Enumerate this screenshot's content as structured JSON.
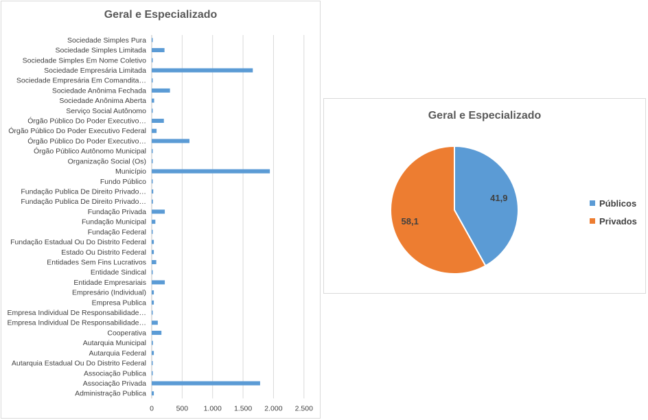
{
  "chart_data": [
    {
      "type": "bar",
      "orientation": "horizontal",
      "title": "Geral e Especializado",
      "xlim": [
        0,
        2500
      ],
      "x_ticks": [
        "0",
        "500",
        "1.000",
        "1.500",
        "2.000",
        "2.500"
      ],
      "x_tick_values": [
        0,
        500,
        1000,
        1500,
        2000,
        2500
      ],
      "grid": true,
      "color": "#5b9bd5",
      "categories": [
        "Sociedade Simples Pura",
        "Sociedade Simples Limitada",
        "Sociedade Simples Em Nome Coletivo",
        "Sociedade Empresária Limitada",
        "Sociedade Empresária Em Comandita…",
        "Sociedade Anônima Fechada",
        "Sociedade Anônima Aberta",
        "Serviço Social Autônomo",
        "Órgão Público Do Poder Executivo…",
        "Órgão Público Do Poder Executivo Federal",
        "Órgão Público Do Poder Executivo…",
        "Órgão Público Autônomo Municipal",
        "Organização Social (Os)",
        "Município",
        "Fundo Público",
        "Fundação Publica De Direito Privado…",
        "Fundação Publica De Direito Privado…",
        "Fundação Privada",
        "Fundação Municipal",
        "Fundação Federal",
        "Fundação Estadual Ou Do Distrito Federal",
        "Estado Ou Distrito Federal",
        "Entidades Sem Fins Lucrativos",
        "Entidade Sindical",
        "Entidade Empresariais",
        "Empresário (Individual)",
        "Empresa Publica",
        "Empresa Individual De Responsabilidade…",
        "Empresa Individual De Responsabilidade…",
        "Cooperativa",
        "Autarquia Municipal",
        "Autarquia Federal",
        "Autarquia Estadual Ou Do Distrito Federal",
        "Associação Publica",
        "Associação Privada",
        "Administração Publica"
      ],
      "values": [
        5,
        210,
        5,
        1660,
        5,
        300,
        40,
        5,
        200,
        80,
        620,
        5,
        5,
        1940,
        5,
        25,
        20,
        215,
        60,
        5,
        35,
        35,
        75,
        5,
        215,
        35,
        35,
        5,
        100,
        160,
        20,
        35,
        5,
        5,
        1780,
        35
      ]
    },
    {
      "type": "pie",
      "title": "Geral e Especializado",
      "labels": [
        "Públicos",
        "Privados"
      ],
      "values": [
        41.9,
        58.1
      ],
      "value_labels": [
        "41,9",
        "58,1"
      ],
      "colors": [
        "#5b9bd5",
        "#ed7d31"
      ],
      "legend": "right"
    }
  ]
}
